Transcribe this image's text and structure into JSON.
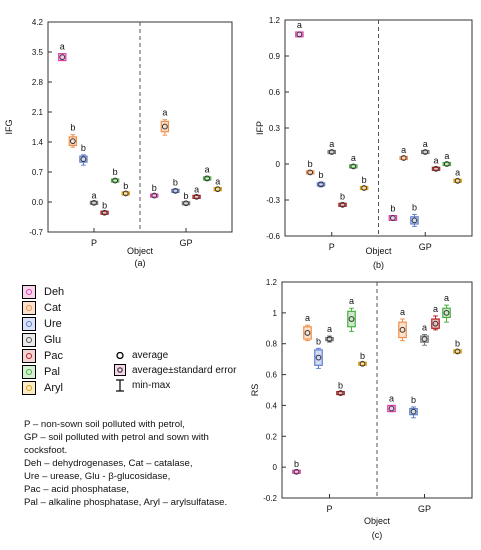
{
  "legend": {
    "items": [
      {
        "label": "Deh",
        "color": "#e040b0"
      },
      {
        "label": "Cat",
        "color": "#f0904a"
      },
      {
        "label": "Ure",
        "color": "#5f7fd0"
      },
      {
        "label": "Glu",
        "color": "#7a7a7a"
      },
      {
        "label": "Pac",
        "color": "#b42020"
      },
      {
        "label": "Pal",
        "color": "#4ab040"
      },
      {
        "label": "Aryl",
        "color": "#e0a010"
      }
    ],
    "key": {
      "average": "average",
      "se": "average±standard error",
      "minmax": "min-max"
    }
  },
  "notes": [
    "P – non-sown soil polluted with petrol,",
    "GP – soil polluted with petrol and sown with cocksfoot.",
    "Deh – dehydrogenases, Cat – catalase,",
    "Ure – urease, Glu - β-glucosidase,",
    "Pac – acid phosphatase,",
    "Pal – alkaline phosphatase, Aryl – arylsulfatase."
  ],
  "chart_data": [
    {
      "panel": "(a)",
      "type": "box",
      "ylabel": "IFG",
      "xlabel": "Object",
      "categories": [
        "P",
        "GP"
      ],
      "ylim": [
        -0.7,
        4.2
      ],
      "yticks": [
        "4.2",
        "3.5",
        "2.8",
        "2.1",
        "1.4",
        "0.7",
        "0.0",
        "-0.7"
      ],
      "grid": false,
      "divider_line": true,
      "series": [
        {
          "name": "Deh",
          "values": [
            {
              "group": "P",
              "mean": 3.38,
              "se": 0.08,
              "min": 3.3,
              "max": 3.46,
              "letter": "a"
            },
            {
              "group": "GP",
              "mean": 0.15,
              "se": 0.01,
              "min": 0.14,
              "max": 0.16,
              "letter": "b"
            }
          ]
        },
        {
          "name": "Cat",
          "values": [
            {
              "group": "P",
              "mean": 1.42,
              "se": 0.1,
              "min": 1.28,
              "max": 1.57,
              "letter": "b"
            },
            {
              "group": "GP",
              "mean": 1.76,
              "se": 0.12,
              "min": 1.56,
              "max": 1.92,
              "letter": "a"
            }
          ]
        },
        {
          "name": "Ure",
          "values": [
            {
              "group": "P",
              "mean": 1.0,
              "se": 0.07,
              "min": 0.86,
              "max": 1.1,
              "letter": "b"
            },
            {
              "group": "GP",
              "mean": 0.26,
              "se": 0.02,
              "min": 0.22,
              "max": 0.29,
              "letter": "b"
            }
          ]
        },
        {
          "name": "Glu",
          "values": [
            {
              "group": "P",
              "mean": -0.02,
              "se": 0.01,
              "min": -0.04,
              "max": -0.01,
              "letter": "a"
            },
            {
              "group": "GP",
              "mean": -0.03,
              "se": 0.01,
              "min": -0.04,
              "max": -0.02,
              "letter": "b"
            }
          ]
        },
        {
          "name": "Pac",
          "values": [
            {
              "group": "P",
              "mean": -0.25,
              "se": 0.01,
              "min": -0.26,
              "max": -0.24,
              "letter": "b"
            },
            {
              "group": "GP",
              "mean": 0.12,
              "se": 0.01,
              "min": 0.11,
              "max": 0.13,
              "letter": "a"
            }
          ]
        },
        {
          "name": "Pal",
          "values": [
            {
              "group": "P",
              "mean": 0.5,
              "se": 0.03,
              "min": 0.46,
              "max": 0.54,
              "letter": "b"
            },
            {
              "group": "GP",
              "mean": 0.55,
              "se": 0.03,
              "min": 0.5,
              "max": 0.6,
              "letter": "a"
            }
          ]
        },
        {
          "name": "Aryl",
          "values": [
            {
              "group": "P",
              "mean": 0.2,
              "se": 0.01,
              "min": 0.19,
              "max": 0.21,
              "letter": "b"
            },
            {
              "group": "GP",
              "mean": 0.3,
              "se": 0.02,
              "min": 0.27,
              "max": 0.32,
              "letter": "a"
            }
          ]
        }
      ]
    },
    {
      "panel": "(b)",
      "type": "box",
      "ylabel": "IFP",
      "xlabel": "Object",
      "categories": [
        "P",
        "GP"
      ],
      "ylim": [
        -0.6,
        1.2
      ],
      "yticks": [
        "1.2",
        "0.9",
        "0.6",
        "0.3",
        "0",
        "-0.3",
        "-0.6"
      ],
      "grid": false,
      "divider_line": true,
      "series": [
        {
          "name": "Deh",
          "values": [
            {
              "group": "P",
              "mean": 1.08,
              "se": 0.02,
              "min": 1.06,
              "max": 1.1,
              "letter": "a"
            },
            {
              "group": "GP",
              "mean": -0.45,
              "se": 0.02,
              "min": -0.47,
              "max": -0.43,
              "letter": "b"
            }
          ]
        },
        {
          "name": "Cat",
          "values": [
            {
              "group": "P",
              "mean": -0.07,
              "se": 0.005,
              "min": -0.08,
              "max": -0.06,
              "letter": "b"
            },
            {
              "group": "GP",
              "mean": 0.05,
              "se": 0.005,
              "min": 0.04,
              "max": 0.06,
              "letter": "a"
            }
          ]
        },
        {
          "name": "Ure",
          "values": [
            {
              "group": "P",
              "mean": -0.17,
              "se": 0.01,
              "min": -0.19,
              "max": -0.15,
              "letter": "b"
            },
            {
              "group": "GP",
              "mean": -0.47,
              "se": 0.03,
              "min": -0.52,
              "max": -0.42,
              "letter": "b"
            }
          ]
        },
        {
          "name": "Glu",
          "values": [
            {
              "group": "P",
              "mean": 0.1,
              "se": 0.005,
              "min": 0.09,
              "max": 0.11,
              "letter": "a"
            },
            {
              "group": "GP",
              "mean": 0.1,
              "se": 0.005,
              "min": 0.09,
              "max": 0.11,
              "letter": "a"
            }
          ]
        },
        {
          "name": "Pac",
          "values": [
            {
              "group": "P",
              "mean": -0.34,
              "se": 0.005,
              "min": -0.35,
              "max": -0.33,
              "letter": "b"
            },
            {
              "group": "GP",
              "mean": -0.04,
              "se": 0.005,
              "min": -0.05,
              "max": -0.03,
              "letter": "a"
            }
          ]
        },
        {
          "name": "Pal",
          "values": [
            {
              "group": "P",
              "mean": -0.02,
              "se": 0.005,
              "min": -0.03,
              "max": -0.01,
              "letter": "a"
            },
            {
              "group": "GP",
              "mean": 0.0,
              "se": 0.005,
              "min": -0.01,
              "max": 0.01,
              "letter": "a"
            }
          ]
        },
        {
          "name": "Aryl",
          "values": [
            {
              "group": "P",
              "mean": -0.2,
              "se": 0.005,
              "min": -0.21,
              "max": -0.19,
              "letter": "b"
            },
            {
              "group": "GP",
              "mean": -0.14,
              "se": 0.005,
              "min": -0.15,
              "max": -0.13,
              "letter": "a"
            }
          ]
        }
      ]
    },
    {
      "panel": "(c)",
      "type": "box",
      "ylabel": "RS",
      "xlabel": "Object",
      "categories": [
        "P",
        "GP"
      ],
      "ylim": [
        -0.2,
        1.2
      ],
      "yticks": [
        "1.2",
        "1",
        "0.8",
        "0.6",
        "0.4",
        "0.2",
        "0",
        "-0.2"
      ],
      "grid": false,
      "divider_line": true,
      "series": [
        {
          "name": "Deh",
          "values": [
            {
              "group": "P",
              "mean": -0.03,
              "se": 0.003,
              "min": -0.035,
              "max": -0.025,
              "letter": "b"
            },
            {
              "group": "GP",
              "mean": 0.38,
              "se": 0.02,
              "min": 0.36,
              "max": 0.4,
              "letter": "a"
            }
          ]
        },
        {
          "name": "Cat",
          "values": [
            {
              "group": "P",
              "mean": 0.87,
              "se": 0.04,
              "min": 0.82,
              "max": 0.92,
              "letter": "a"
            },
            {
              "group": "GP",
              "mean": 0.89,
              "se": 0.05,
              "min": 0.82,
              "max": 0.96,
              "letter": "a"
            }
          ]
        },
        {
          "name": "Ure",
          "values": [
            {
              "group": "P",
              "mean": 0.71,
              "se": 0.05,
              "min": 0.64,
              "max": 0.77,
              "letter": "b"
            },
            {
              "group": "GP",
              "mean": 0.36,
              "se": 0.02,
              "min": 0.32,
              "max": 0.39,
              "letter": "b"
            }
          ]
        },
        {
          "name": "Glu",
          "values": [
            {
              "group": "P",
              "mean": 0.83,
              "se": 0.01,
              "min": 0.81,
              "max": 0.85,
              "letter": "a"
            },
            {
              "group": "GP",
              "mean": 0.83,
              "se": 0.02,
              "min": 0.79,
              "max": 0.86,
              "letter": "a"
            }
          ]
        },
        {
          "name": "Pac",
          "values": [
            {
              "group": "P",
              "mean": 0.48,
              "se": 0.005,
              "min": 0.475,
              "max": 0.485,
              "letter": "b"
            },
            {
              "group": "GP",
              "mean": 0.93,
              "se": 0.03,
              "min": 0.89,
              "max": 0.98,
              "letter": "a"
            }
          ]
        },
        {
          "name": "Pal",
          "values": [
            {
              "group": "P",
              "mean": 0.96,
              "se": 0.05,
              "min": 0.88,
              "max": 1.03,
              "letter": "a"
            },
            {
              "group": "GP",
              "mean": 1.0,
              "se": 0.03,
              "min": 0.94,
              "max": 1.05,
              "letter": "a"
            }
          ]
        },
        {
          "name": "Aryl",
          "values": [
            {
              "group": "P",
              "mean": 0.67,
              "se": 0.005,
              "min": 0.665,
              "max": 0.675,
              "letter": "b"
            },
            {
              "group": "GP",
              "mean": 0.75,
              "se": 0.005,
              "min": 0.745,
              "max": 0.755,
              "letter": "b"
            }
          ]
        }
      ]
    }
  ]
}
